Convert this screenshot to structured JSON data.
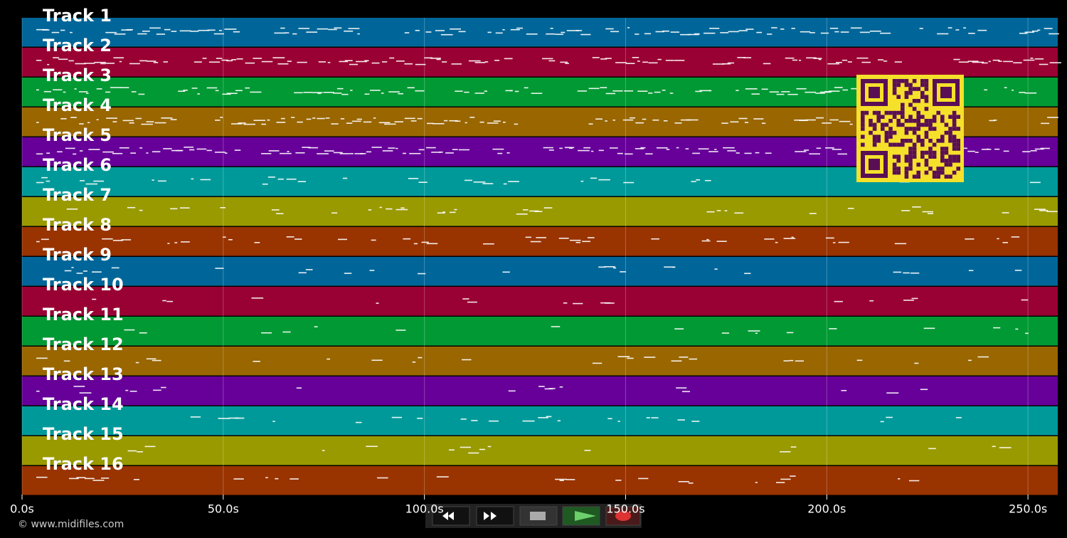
{
  "tracks": [
    {
      "name": "Track 1",
      "color": "#006699"
    },
    {
      "name": "Track 2",
      "color": "#990033"
    },
    {
      "name": "Track 3",
      "color": "#009933"
    },
    {
      "name": "Track 4",
      "color": "#996600"
    },
    {
      "name": "Track 5",
      "color": "#660099"
    },
    {
      "name": "Track 6",
      "color": "#009999"
    },
    {
      "name": "Track 7",
      "color": "#999900"
    },
    {
      "name": "Track 8",
      "color": "#993300"
    },
    {
      "name": "Track 9",
      "color": "#006699"
    },
    {
      "name": "Track 10",
      "color": "#990033"
    },
    {
      "name": "Track 11",
      "color": "#009933"
    },
    {
      "name": "Track 12",
      "color": "#996600"
    },
    {
      "name": "Track 13",
      "color": "#660099"
    },
    {
      "name": "Track 14",
      "color": "#009999"
    },
    {
      "name": "Track 15",
      "color": "#999900"
    },
    {
      "name": "Track 16",
      "color": "#993300"
    }
  ],
  "axis": {
    "xlim": [
      0,
      257.4
    ],
    "xticks": [
      {
        "value": 0,
        "label": "0.0s"
      },
      {
        "value": 50,
        "label": "50.0s"
      },
      {
        "value": 100,
        "label": "100.0s"
      },
      {
        "value": 150,
        "label": "150.0s"
      },
      {
        "value": 200,
        "label": "200.0s"
      },
      {
        "value": 250,
        "label": "250.0s"
      }
    ]
  },
  "footer": "© www.midifiles.com"
}
